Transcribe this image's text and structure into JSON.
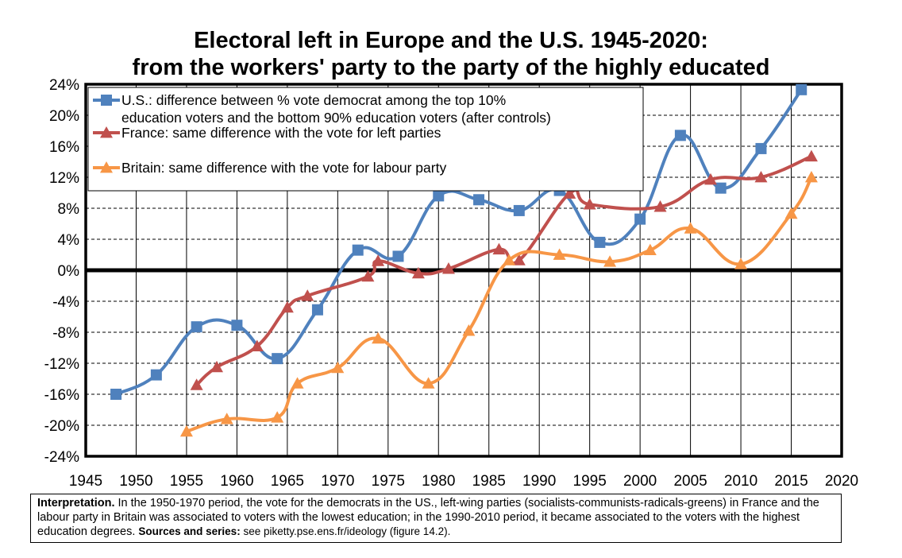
{
  "title_line1": "Electoral left in Europe and the U.S. 1945-2020:",
  "title_line2": "from the workers' party to the party of the highly educated",
  "interpretation": {
    "label": "Interpretation.",
    "text": " In the 1950-1970 period, the vote for the democrats in the US., left-wing parties (socialists-communists-radicals-greens) in France and the labour party in Britain was associated to voters with the lowest education; in the 1990-2010 period, it became associated to the voters with the highest education degrees. ",
    "sources_label": "Sources and series:",
    "sources_text": " see piketty.pse.ens.fr/ideology (figure 14.2)."
  },
  "chart_data": {
    "type": "line",
    "title": "Electoral left in Europe and the U.S. 1945-2020: from the workers' party to the party of the highly educated",
    "xlim": [
      1945,
      2020
    ],
    "ylim": [
      -24,
      24
    ],
    "x_ticks": [
      "1945",
      "1950",
      "1955",
      "1960",
      "1965",
      "1970",
      "1975",
      "1980",
      "1985",
      "1990",
      "1995",
      "2000",
      "2005",
      "2010",
      "2015",
      "2020"
    ],
    "y_ticks": [
      "24%",
      "20%",
      "16%",
      "12%",
      "8%",
      "4%",
      "0%",
      "-4%",
      "-8%",
      "-12%",
      "-16%",
      "-20%",
      "-24%"
    ],
    "grid": true,
    "legend_position": "top-left",
    "series": [
      {
        "name": "U.S.: difference between % vote democrat among the top 10% education voters and the bottom 90% education voters (after controls)",
        "legend_lines": [
          "U.S.: difference between % vote democrat among the top 10%",
          "education voters and the bottom 90% education voters (after controls)"
        ],
        "color": "#4f81bd",
        "marker": "square",
        "points": [
          [
            1948,
            -16
          ],
          [
            1952,
            -13.5
          ],
          [
            1956,
            -7.3
          ],
          [
            1960,
            -7.1
          ],
          [
            1964,
            -11.4
          ],
          [
            1968,
            -5.1
          ],
          [
            1972,
            2.6
          ],
          [
            1976,
            1.8
          ],
          [
            1980,
            9.6
          ],
          [
            1984,
            9.1
          ],
          [
            1988,
            7.7
          ],
          [
            1992,
            10.3
          ],
          [
            1996,
            3.6
          ],
          [
            2000,
            6.6
          ],
          [
            2004,
            17.4
          ],
          [
            2008,
            10.6
          ],
          [
            2012,
            15.7
          ],
          [
            2016,
            23.3
          ]
        ]
      },
      {
        "name": "France: same difference with the vote for left parties",
        "legend_lines": [
          "France: same difference with the vote for left parties"
        ],
        "color": "#c0504d",
        "marker": "triangle",
        "points": [
          [
            1956,
            -14.8
          ],
          [
            1958,
            -12.5
          ],
          [
            1962,
            -9.8
          ],
          [
            1965,
            -4.8
          ],
          [
            1967,
            -3.3
          ],
          [
            1973,
            -0.8
          ],
          [
            1974,
            1.2
          ],
          [
            1978,
            -0.4
          ],
          [
            1981,
            0.2
          ],
          [
            1986,
            2.7
          ],
          [
            1988,
            1.3
          ],
          [
            1993,
            9.9
          ],
          [
            1995,
            8.5
          ],
          [
            2002,
            8.2
          ],
          [
            2007,
            11.7
          ],
          [
            2012,
            12
          ],
          [
            2017,
            14.7
          ]
        ]
      },
      {
        "name": "Britain: same difference with the vote for labour party",
        "legend_lines": [
          "Britain: same difference with the vote for labour party"
        ],
        "color": "#f79646",
        "marker": "triangle",
        "points": [
          [
            1955,
            -20.8
          ],
          [
            1959,
            -19.2
          ],
          [
            1964,
            -19
          ],
          [
            1966,
            -14.6
          ],
          [
            1970,
            -12.6
          ],
          [
            1974,
            -8.8
          ],
          [
            1979,
            -14.6
          ],
          [
            1983,
            -7.8
          ],
          [
            1987,
            1.3
          ],
          [
            1992,
            2
          ],
          [
            1997,
            1.1
          ],
          [
            2001,
            2.6
          ],
          [
            2005,
            5.4
          ],
          [
            2010,
            0.8
          ],
          [
            2015,
            7.3
          ],
          [
            2017,
            12
          ]
        ]
      }
    ]
  }
}
